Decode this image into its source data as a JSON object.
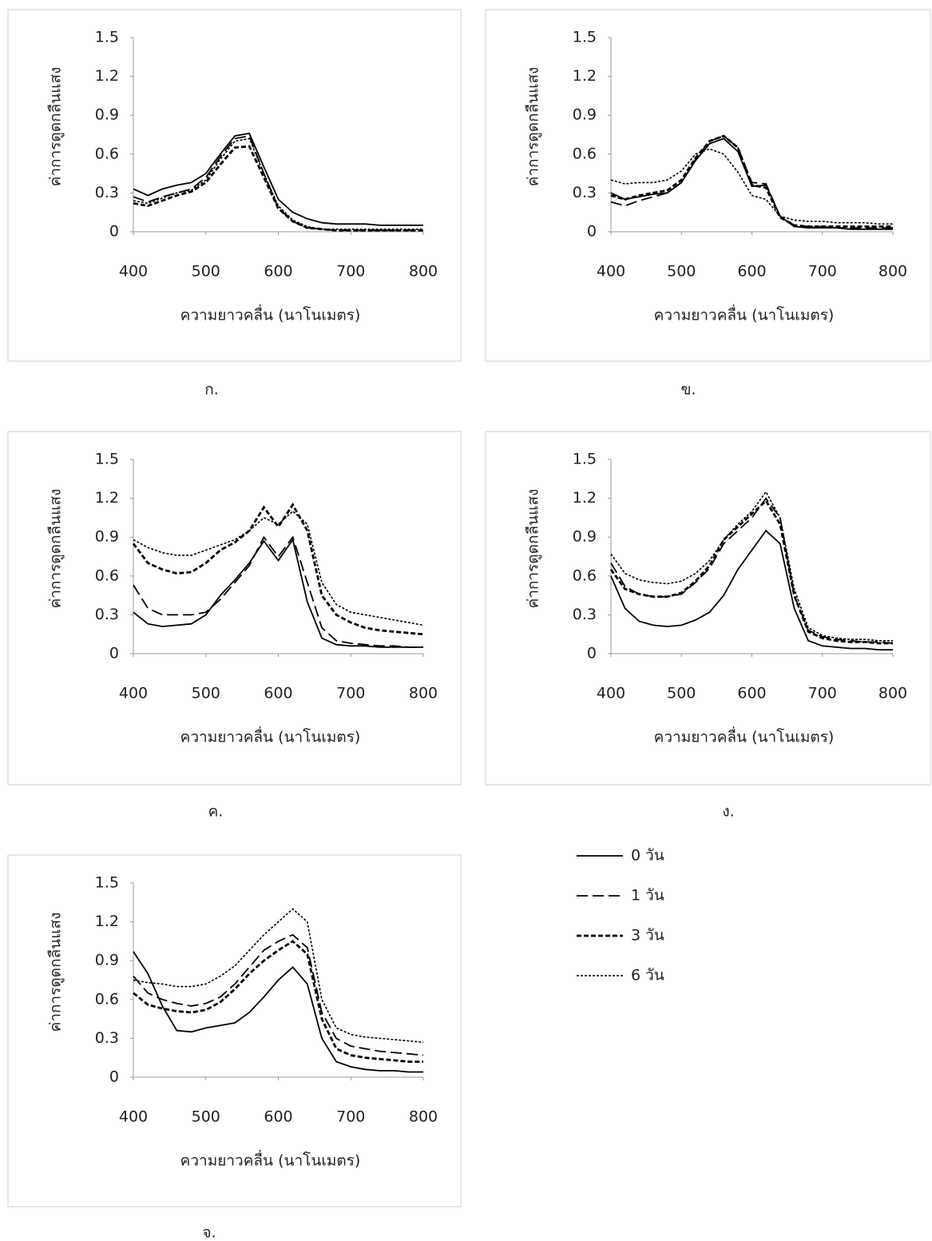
{
  "chart_data": [
    {
      "type": "line",
      "caption": "ก.",
      "xlabel": "ความยาวคลื่น (นาโนเมตร)",
      "ylabel": "ค่าการดูดกลืนแสง",
      "xlim": [
        400,
        800
      ],
      "xticks": [
        400,
        500,
        600,
        700,
        800
      ],
      "ylim": [
        0,
        1.5
      ],
      "yticks": [
        0,
        0.3,
        0.6,
        0.9,
        1.2,
        1.5
      ],
      "x": [
        400,
        420,
        440,
        460,
        480,
        500,
        520,
        540,
        560,
        580,
        600,
        620,
        640,
        660,
        680,
        700,
        720,
        740,
        760,
        780,
        800
      ],
      "series": [
        {
          "color": "#000000",
          "dash": "solid",
          "values": [
            0.33,
            0.28,
            0.33,
            0.36,
            0.38,
            0.45,
            0.6,
            0.74,
            0.76,
            0.5,
            0.25,
            0.15,
            0.1,
            0.07,
            0.06,
            0.06,
            0.06,
            0.05,
            0.05,
            0.05,
            0.05
          ]
        },
        {
          "color": "#000000",
          "dash": "long-dash",
          "values": [
            0.27,
            0.23,
            0.27,
            0.3,
            0.33,
            0.42,
            0.58,
            0.72,
            0.74,
            0.45,
            0.18,
            0.08,
            0.03,
            0.02,
            0.01,
            0.01,
            0.01,
            0.01,
            0.01,
            0.01,
            0.01
          ]
        },
        {
          "color": "#000000",
          "dash": "dash",
          "values": [
            0.22,
            0.2,
            0.24,
            0.28,
            0.31,
            0.38,
            0.52,
            0.65,
            0.66,
            0.42,
            0.18,
            0.08,
            0.03,
            0.02,
            0.01,
            0.01,
            0.01,
            0.01,
            0.01,
            0.01,
            0.01
          ]
        },
        {
          "color": "#000000",
          "dash": "short-dash",
          "values": [
            0.24,
            0.22,
            0.26,
            0.3,
            0.32,
            0.4,
            0.56,
            0.7,
            0.72,
            0.45,
            0.2,
            0.09,
            0.04,
            0.02,
            0.02,
            0.02,
            0.02,
            0.02,
            0.02,
            0.02,
            0.02
          ]
        }
      ]
    },
    {
      "type": "line",
      "caption": "ข.",
      "xlabel": "ความยาวคลื่น (นาโนเมตร)",
      "ylabel": "ค่าการดูดกลืนแสง",
      "xlim": [
        400,
        800
      ],
      "xticks": [
        400,
        500,
        600,
        700,
        800
      ],
      "ylim": [
        0,
        1.5
      ],
      "yticks": [
        0,
        0.3,
        0.6,
        0.9,
        1.2,
        1.5
      ],
      "x": [
        400,
        420,
        440,
        460,
        480,
        500,
        520,
        540,
        560,
        580,
        600,
        620,
        640,
        660,
        680,
        700,
        720,
        740,
        760,
        780,
        800
      ],
      "series": [
        {
          "color": "#000000",
          "dash": "solid",
          "values": [
            0.3,
            0.25,
            0.27,
            0.29,
            0.3,
            0.38,
            0.55,
            0.68,
            0.72,
            0.62,
            0.35,
            0.36,
            0.12,
            0.04,
            0.03,
            0.03,
            0.03,
            0.02,
            0.02,
            0.02,
            0.02
          ]
        },
        {
          "color": "#000000",
          "dash": "long-dash",
          "values": [
            0.23,
            0.2,
            0.24,
            0.27,
            0.3,
            0.38,
            0.56,
            0.7,
            0.74,
            0.65,
            0.38,
            0.37,
            0.12,
            0.05,
            0.04,
            0.04,
            0.03,
            0.03,
            0.03,
            0.03,
            0.03
          ]
        },
        {
          "color": "#000000",
          "dash": "dash",
          "values": [
            0.28,
            0.25,
            0.28,
            0.3,
            0.32,
            0.4,
            0.57,
            0.7,
            0.74,
            0.65,
            0.36,
            0.34,
            0.11,
            0.05,
            0.04,
            0.04,
            0.04,
            0.04,
            0.04,
            0.04,
            0.04
          ]
        },
        {
          "color": "#000000",
          "dash": "short-dash",
          "values": [
            0.4,
            0.37,
            0.38,
            0.38,
            0.4,
            0.47,
            0.6,
            0.64,
            0.6,
            0.46,
            0.28,
            0.25,
            0.12,
            0.09,
            0.08,
            0.08,
            0.07,
            0.07,
            0.07,
            0.06,
            0.06
          ]
        }
      ]
    },
    {
      "type": "line",
      "caption": "ค.",
      "xlabel": "ความยาวคลื่น (นาโนเมตร)",
      "ylabel": "ค่าการดูดกลืนแสง",
      "xlim": [
        400,
        800
      ],
      "xticks": [
        400,
        500,
        600,
        700,
        800
      ],
      "ylim": [
        0,
        1.5
      ],
      "yticks": [
        0,
        0.3,
        0.6,
        0.9,
        1.2,
        1.5
      ],
      "x": [
        400,
        420,
        440,
        460,
        480,
        500,
        520,
        540,
        560,
        580,
        600,
        620,
        640,
        660,
        680,
        700,
        720,
        740,
        760,
        780,
        800
      ],
      "series": [
        {
          "color": "#000000",
          "dash": "solid",
          "values": [
            0.32,
            0.23,
            0.21,
            0.22,
            0.23,
            0.3,
            0.45,
            0.57,
            0.7,
            0.87,
            0.72,
            0.88,
            0.4,
            0.12,
            0.07,
            0.06,
            0.06,
            0.05,
            0.05,
            0.05,
            0.05
          ]
        },
        {
          "color": "#000000",
          "dash": "long-dash",
          "values": [
            0.53,
            0.35,
            0.3,
            0.3,
            0.3,
            0.32,
            0.42,
            0.55,
            0.68,
            0.9,
            0.75,
            0.9,
            0.55,
            0.2,
            0.1,
            0.08,
            0.07,
            0.06,
            0.06,
            0.05,
            0.05
          ]
        },
        {
          "color": "#000000",
          "dash": "dash",
          "values": [
            0.85,
            0.7,
            0.65,
            0.62,
            0.63,
            0.7,
            0.8,
            0.86,
            0.95,
            1.13,
            0.98,
            1.15,
            0.95,
            0.45,
            0.3,
            0.24,
            0.2,
            0.18,
            0.17,
            0.16,
            0.15
          ]
        },
        {
          "color": "#000000",
          "dash": "short-dash",
          "values": [
            0.88,
            0.82,
            0.78,
            0.76,
            0.76,
            0.8,
            0.84,
            0.88,
            0.95,
            1.05,
            1.0,
            1.1,
            1.0,
            0.55,
            0.38,
            0.32,
            0.3,
            0.28,
            0.26,
            0.24,
            0.22
          ]
        }
      ]
    },
    {
      "type": "line",
      "caption": "ง.",
      "xlabel": "ความยาวคลื่น (นาโนเมตร)",
      "ylabel": "ค่าการดูดกลืนแสง",
      "xlim": [
        400,
        800
      ],
      "xticks": [
        400,
        500,
        600,
        700,
        800
      ],
      "ylim": [
        0,
        1.5
      ],
      "yticks": [
        0,
        0.3,
        0.6,
        0.9,
        1.2,
        1.5
      ],
      "x": [
        400,
        420,
        440,
        460,
        480,
        500,
        520,
        540,
        560,
        580,
        600,
        620,
        640,
        660,
        680,
        700,
        720,
        740,
        760,
        780,
        800
      ],
      "series": [
        {
          "color": "#000000",
          "dash": "solid",
          "values": [
            0.6,
            0.35,
            0.25,
            0.22,
            0.21,
            0.22,
            0.26,
            0.32,
            0.45,
            0.65,
            0.8,
            0.95,
            0.85,
            0.35,
            0.1,
            0.06,
            0.05,
            0.04,
            0.04,
            0.03,
            0.03
          ]
        },
        {
          "color": "#000000",
          "dash": "long-dash",
          "values": [
            0.7,
            0.52,
            0.46,
            0.44,
            0.44,
            0.46,
            0.55,
            0.66,
            0.85,
            0.95,
            1.05,
            1.2,
            1.05,
            0.45,
            0.18,
            0.13,
            0.11,
            0.1,
            0.09,
            0.09,
            0.08
          ]
        },
        {
          "color": "#000000",
          "dash": "dash",
          "values": [
            0.65,
            0.5,
            0.46,
            0.44,
            0.44,
            0.47,
            0.56,
            0.68,
            0.88,
            0.98,
            1.08,
            1.18,
            1.0,
            0.45,
            0.17,
            0.12,
            0.1,
            0.09,
            0.09,
            0.08,
            0.08
          ]
        },
        {
          "color": "#000000",
          "dash": "short-dash",
          "values": [
            0.77,
            0.62,
            0.57,
            0.55,
            0.54,
            0.56,
            0.62,
            0.72,
            0.88,
            1.0,
            1.1,
            1.25,
            1.05,
            0.5,
            0.2,
            0.14,
            0.12,
            0.11,
            0.11,
            0.1,
            0.1
          ]
        }
      ]
    },
    {
      "type": "line",
      "caption": "จ.",
      "xlabel": "ความยาวคลื่น (นาโนเมตร)",
      "ylabel": "ค่าการดูดกลืนแสง",
      "xlim": [
        400,
        800
      ],
      "xticks": [
        400,
        500,
        600,
        700,
        800
      ],
      "ylim": [
        0,
        1.5
      ],
      "yticks": [
        0,
        0.3,
        0.6,
        0.9,
        1.2,
        1.5
      ],
      "x": [
        400,
        420,
        440,
        460,
        480,
        500,
        520,
        540,
        560,
        580,
        600,
        620,
        640,
        660,
        680,
        700,
        720,
        740,
        760,
        780,
        800
      ],
      "legend": "outside-right",
      "series": [
        {
          "name": "0 วัน",
          "color": "#000000",
          "dash": "solid",
          "values": [
            0.97,
            0.8,
            0.55,
            0.36,
            0.35,
            0.38,
            0.4,
            0.42,
            0.5,
            0.62,
            0.75,
            0.85,
            0.72,
            0.3,
            0.12,
            0.08,
            0.06,
            0.05,
            0.05,
            0.04,
            0.04
          ]
        },
        {
          "name": "1 วัน",
          "color": "#000000",
          "dash": "long-dash",
          "values": [
            0.78,
            0.65,
            0.6,
            0.57,
            0.55,
            0.57,
            0.62,
            0.72,
            0.85,
            0.98,
            1.05,
            1.1,
            1.0,
            0.5,
            0.3,
            0.24,
            0.22,
            0.2,
            0.19,
            0.18,
            0.17
          ]
        },
        {
          "name": "3 วัน",
          "color": "#000000",
          "dash": "dash",
          "values": [
            0.65,
            0.56,
            0.53,
            0.51,
            0.5,
            0.52,
            0.58,
            0.68,
            0.8,
            0.9,
            0.98,
            1.05,
            0.95,
            0.45,
            0.22,
            0.17,
            0.15,
            0.14,
            0.13,
            0.12,
            0.12
          ]
        },
        {
          "name": "6 วัน",
          "color": "#000000",
          "dash": "short-dash",
          "values": [
            0.75,
            0.73,
            0.72,
            0.7,
            0.7,
            0.72,
            0.78,
            0.86,
            0.98,
            1.1,
            1.2,
            1.3,
            1.2,
            0.6,
            0.38,
            0.33,
            0.31,
            0.3,
            0.29,
            0.28,
            0.27
          ]
        }
      ]
    }
  ]
}
